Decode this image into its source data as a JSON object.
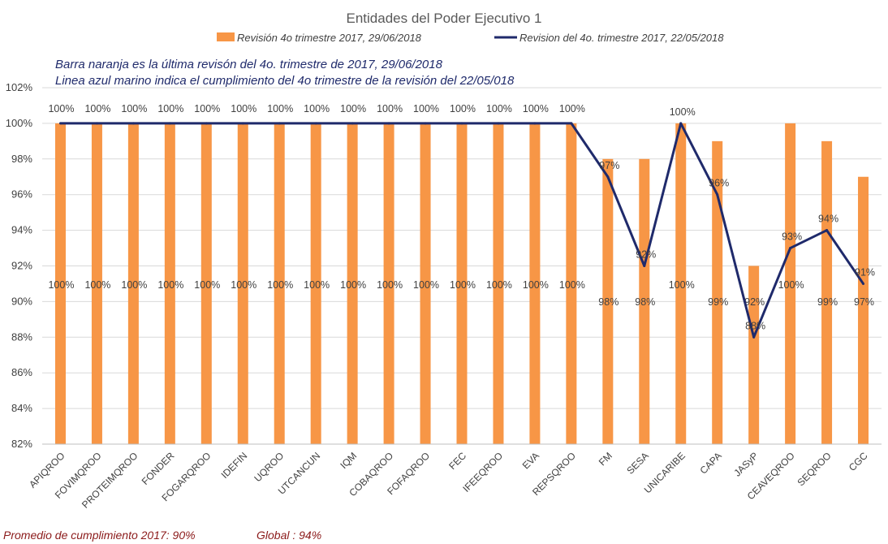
{
  "chart_data": {
    "type": "bar",
    "title": "Entidades del Poder Ejecutivo 1",
    "categories": [
      "APIQROO",
      "FOVIMQROO",
      "PROTEIMQROO",
      "FONDER",
      "FOGARQROO",
      "IDEFIN",
      "UQROO",
      "UTCANCUN",
      "IQM",
      "COBAQROO",
      "FOFAQROO",
      "FEC",
      "IFEEQROO",
      "EVA",
      "REPSQROO",
      "FM",
      "SESA",
      "UNICARIBE",
      "CAPA",
      "JASyP",
      "CEAVEQROO",
      "SEQROO",
      "CGC"
    ],
    "series": [
      {
        "name": "Revisión 4o trimestre 2017, 29/06/2018",
        "type": "bar",
        "color": "#f79646",
        "values": [
          100,
          100,
          100,
          100,
          100,
          100,
          100,
          100,
          100,
          100,
          100,
          100,
          100,
          100,
          100,
          98,
          98,
          100,
          99,
          92,
          100,
          99,
          97
        ],
        "labels": [
          "100%",
          "100%",
          "100%",
          "100%",
          "100%",
          "100%",
          "100%",
          "100%",
          "100%",
          "100%",
          "100%",
          "100%",
          "100%",
          "100%",
          "100%",
          "98%",
          "98%",
          "100%",
          "99%",
          "92%",
          "100%",
          "99%",
          "97%"
        ]
      },
      {
        "name": "Revision del 4o. trimestre 2017, 22/05/2018",
        "type": "line",
        "color": "#1f2a6b",
        "values": [
          100,
          100,
          100,
          100,
          100,
          100,
          100,
          100,
          100,
          100,
          100,
          100,
          100,
          100,
          100,
          97,
          92,
          100,
          96,
          88,
          93,
          94,
          91
        ],
        "labels": [
          "100%",
          "100%",
          "100%",
          "100%",
          "100%",
          "100%",
          "100%",
          "100%",
          "100%",
          "100%",
          "100%",
          "100%",
          "100%",
          "100%",
          "100%",
          "97%",
          "92%",
          "100%",
          "96%",
          "88%",
          "93%",
          "94%",
          "91%"
        ]
      }
    ],
    "ylim": [
      82,
      102
    ],
    "yticks": [
      "82%",
      "84%",
      "86%",
      "88%",
      "90%",
      "92%",
      "94%",
      "96%",
      "98%",
      "100%",
      "102%"
    ],
    "grid": true,
    "legend_position": "top",
    "annotations": [
      "Barra naranja es la última revisón del 4o. trimestre de 2017, 29/06/2018",
      "Linea azul marino indica el cumplimiento  del 4o trimestre de la revisión del 22/05/018"
    ]
  },
  "footer": {
    "promedio": "Promedio de cumplimiento  2017: 90%",
    "global": "Global : 94%"
  }
}
